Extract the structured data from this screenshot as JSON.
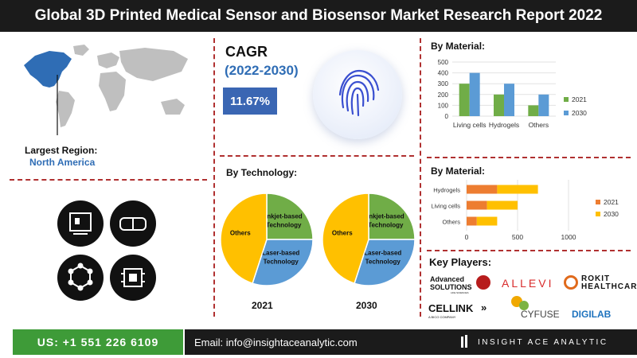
{
  "header": {
    "title": "Global 3D Printed Medical Sensor and Biosensor Market Research Report 2022"
  },
  "region": {
    "label": "Largest Region:",
    "value": "North America"
  },
  "cagr": {
    "title": "CAGR",
    "years": "(2022-2030)",
    "value": "11.67%"
  },
  "technology": {
    "label": "By Technology:"
  },
  "material_top": {
    "label": "By Material:"
  },
  "material_bottom": {
    "label": "By Material:"
  },
  "key_players": {
    "label": "Key Players:",
    "logos": [
      "Advanced SOLUTIONS",
      "ALLEVI",
      "ROKIT HEALTHCARE",
      "CELLINK",
      "CYFUSE",
      "DIGILAB"
    ],
    "advanced_small": "LIFE SCIENCES",
    "cellink_small": "A BICO COMPANY"
  },
  "icons": [
    "bioprinter-icon",
    "vr-headset-icon",
    "molecule-icon",
    "chip-icon"
  ],
  "footer": {
    "phone": "US: +1 551 226 6109",
    "email": "Email: info@insightaceanalytic.com",
    "brand": "INSIGHT ACE ANALYTIC"
  },
  "colors": {
    "blue": "#5b9bd5",
    "green": "#70ad47",
    "orange": "#ed7d31",
    "yellow": "#ffc000",
    "accent": "#2f6db5"
  },
  "chart_data": [
    {
      "type": "bar",
      "title": "By Material:",
      "categories": [
        "Living cells",
        "Hydrogels",
        "Others"
      ],
      "series": [
        {
          "name": "2021",
          "values": [
            300,
            200,
            100
          ]
        },
        {
          "name": "2030",
          "values": [
            400,
            300,
            200
          ]
        }
      ],
      "ylim": [
        0,
        500
      ],
      "yticks": [
        0,
        100,
        200,
        300,
        400,
        500
      ],
      "legend": "right"
    },
    {
      "type": "bar",
      "orientation": "horizontal-stacked",
      "title": "By Material:",
      "categories": [
        "Hydrogels",
        "Living cells",
        "Others"
      ],
      "series": [
        {
          "name": "2021",
          "values": [
            300,
            200,
            100
          ]
        },
        {
          "name": "2030",
          "values": [
            400,
            300,
            200
          ]
        }
      ],
      "xlim": [
        0,
        1000
      ],
      "xticks": [
        0,
        500,
        1000
      ],
      "legend": "right"
    },
    {
      "type": "pie",
      "title": "2021",
      "labels": [
        "Inkjet-based Technology",
        "Laser-based Technology",
        "Others"
      ],
      "values": [
        25,
        30,
        45
      ]
    },
    {
      "type": "pie",
      "title": "2030",
      "labels": [
        "Inkjet-based Technology",
        "Laser-based Technology",
        "Others"
      ],
      "values": [
        25,
        30,
        45
      ]
    }
  ]
}
